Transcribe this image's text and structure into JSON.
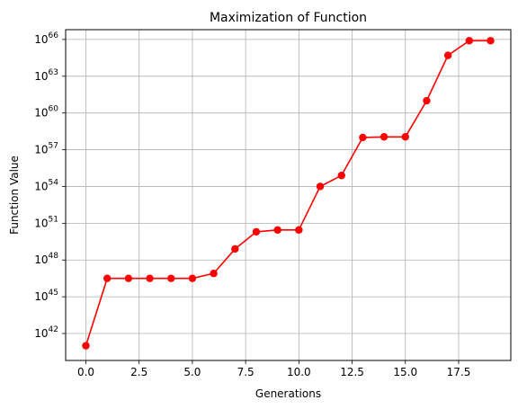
{
  "chart_data": {
    "type": "line",
    "title": "Maximization of Function",
    "xlabel": "Generations",
    "ylabel": "Function Value",
    "yscale": "log",
    "grid": true,
    "xlim": [
      -0.95,
      19.95
    ],
    "ylim_exp": [
      39.8,
      66.8
    ],
    "xticks": [
      0.0,
      2.5,
      5.0,
      7.5,
      10.0,
      12.5,
      15.0,
      17.5
    ],
    "xtick_labels": [
      "0.0",
      "2.5",
      "5.0",
      "7.5",
      "10.0",
      "12.5",
      "15.0",
      "17.5"
    ],
    "ytick_exponents": [
      42,
      45,
      48,
      51,
      54,
      57,
      60,
      63,
      66
    ],
    "ytick_labels": [
      "10^42",
      "10^45",
      "10^48",
      "10^51",
      "10^54",
      "10^57",
      "10^60",
      "10^63",
      "10^66"
    ],
    "series": [
      {
        "color": "#ff0000",
        "marker": "circle",
        "x": [
          0,
          1,
          2,
          3,
          4,
          5,
          6,
          7,
          8,
          9,
          10,
          11,
          12,
          13,
          14,
          15,
          16,
          17,
          18,
          19
        ],
        "y_exp": [
          41.0,
          46.5,
          46.5,
          46.5,
          46.5,
          46.5,
          46.9,
          48.9,
          50.3,
          50.45,
          50.45,
          54.0,
          54.9,
          58.0,
          58.05,
          58.05,
          61.0,
          64.7,
          65.9,
          65.9
        ]
      }
    ]
  }
}
